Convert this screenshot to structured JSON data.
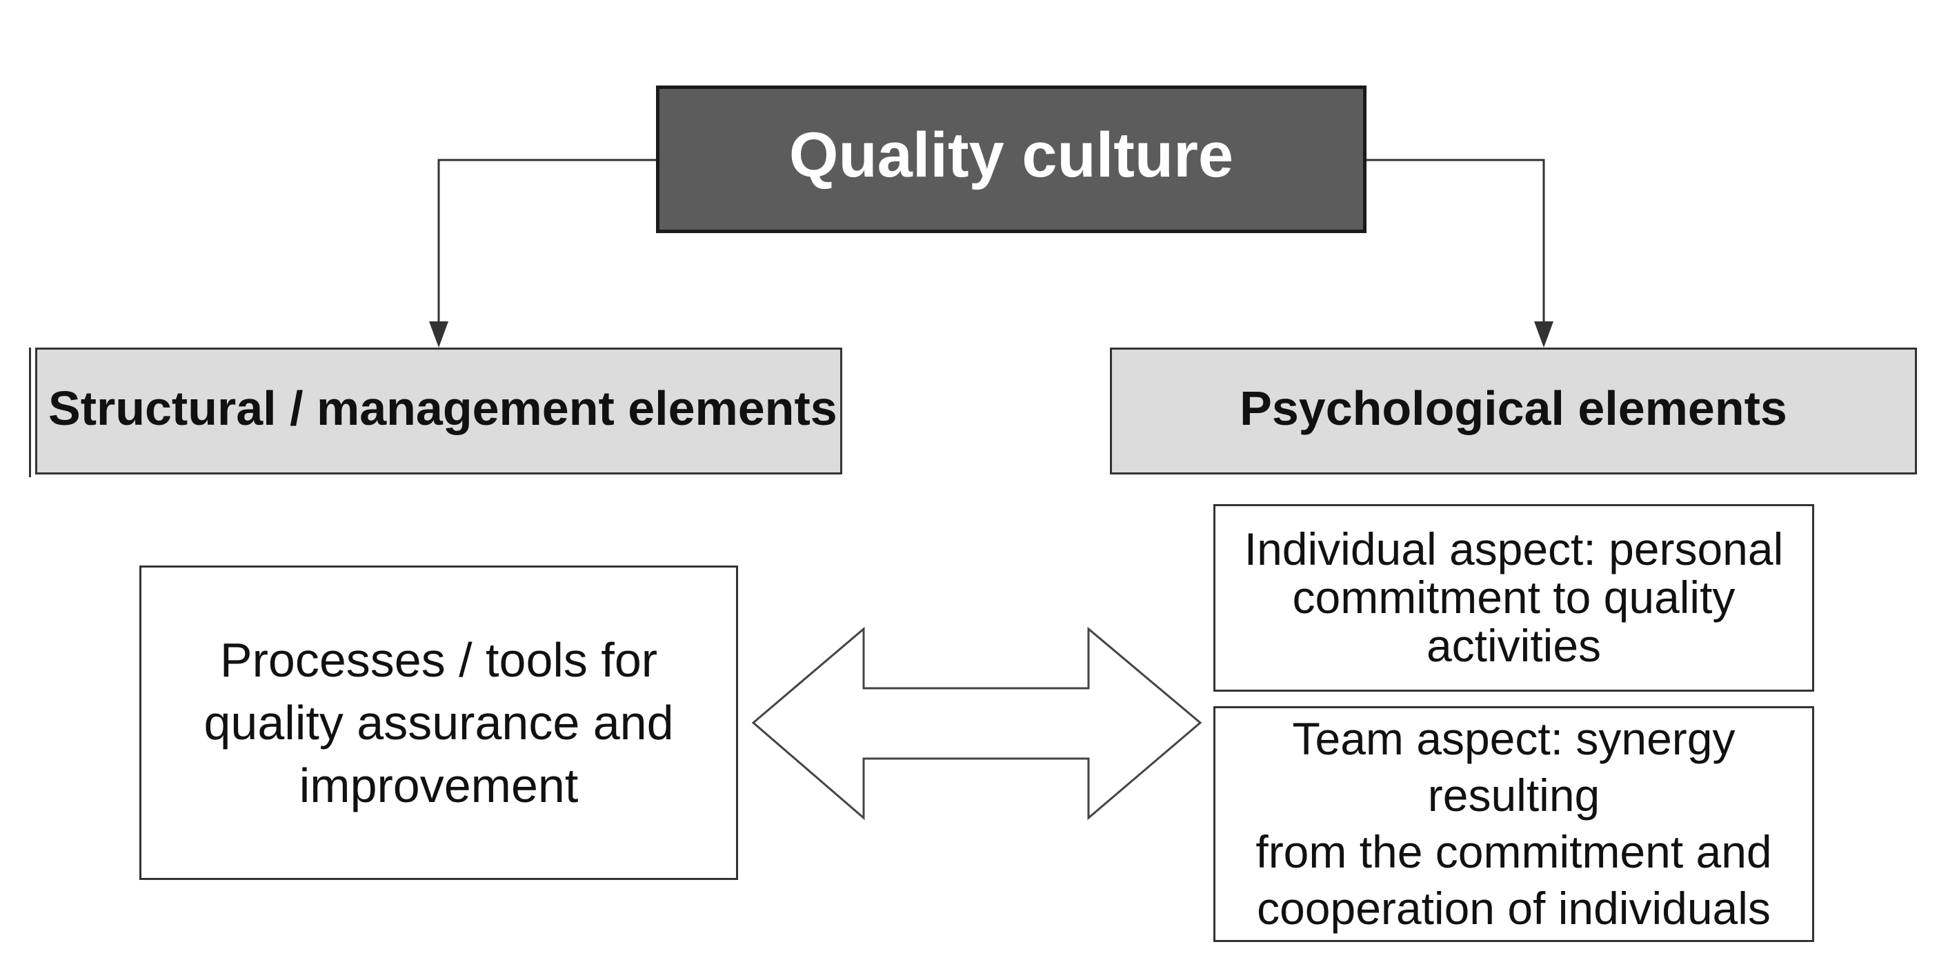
{
  "root": {
    "title": "Quality culture"
  },
  "categories": {
    "left": "Structural / management elements",
    "right": "Psychological  elements"
  },
  "details": {
    "processes": "Processes / tools for\nquality assurance and\nimprovement",
    "individual": "Individual aspect: personal\ncommitment to quality\nactivities",
    "team": "Team aspect: synergy resulting\nfrom the commitment and\ncooperation of individuals"
  },
  "colors": {
    "root_fill": "#5c5c5c",
    "category_fill": "#dcdcdc",
    "outline": "#333333"
  }
}
